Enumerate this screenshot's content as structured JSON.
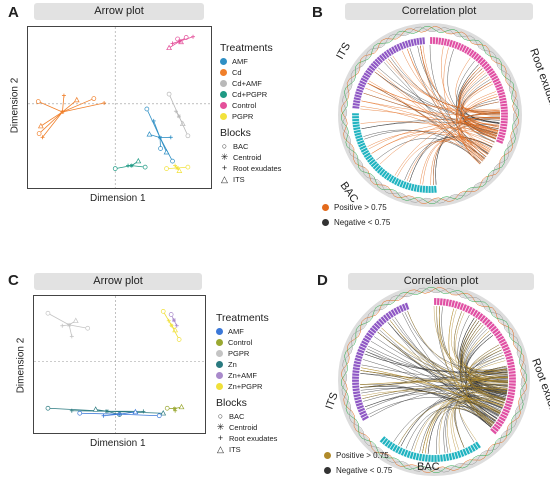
{
  "panels": {
    "A": {
      "letter": "A",
      "title": "Arrow plot",
      "xlabel": "Dimension 1",
      "ylabel": "Dimension 2"
    },
    "B": {
      "letter": "B",
      "title": "Correlation plot"
    },
    "C": {
      "letter": "C",
      "title": "Arrow plot",
      "xlabel": "Dimension 1",
      "ylabel": "Dimension 2"
    },
    "D": {
      "letter": "D",
      "title": "Correlation plot"
    }
  },
  "legend_top": {
    "treatments_title": "Treatments",
    "treatments": [
      {
        "label": "AMF",
        "color": "#2f8fc4"
      },
      {
        "label": "Cd",
        "color": "#f07f2a"
      },
      {
        "label": "Cd+AMF",
        "color": "#b9b9b9"
      },
      {
        "label": "Cd+PGPR",
        "color": "#1f9a84"
      },
      {
        "label": "Control",
        "color": "#e4509a"
      },
      {
        "label": "PGPR",
        "color": "#f2e23c"
      }
    ],
    "blocks_title": "Blocks",
    "blocks": [
      {
        "label": "BAC",
        "icon": "circle-icon"
      },
      {
        "label": "Centroid",
        "icon": "asterisk-icon"
      },
      {
        "label": "Root exudates",
        "icon": "plus-icon"
      },
      {
        "label": "ITS",
        "icon": "triangle-icon"
      }
    ]
  },
  "legend_bottom": {
    "treatments_title": "Treatments",
    "treatments": [
      {
        "label": "AMF",
        "color": "#3b78d8"
      },
      {
        "label": "Control",
        "color": "#9aa832"
      },
      {
        "label": "PGPR",
        "color": "#c4c4c4"
      },
      {
        "label": "Zn",
        "color": "#2a7a80"
      },
      {
        "label": "Zn+AMF",
        "color": "#a98acb"
      },
      {
        "label": "Zn+PGPR",
        "color": "#f0e03a"
      }
    ],
    "blocks_title": "Blocks",
    "blocks": [
      {
        "label": "BAC",
        "icon": "circle-icon"
      },
      {
        "label": "Centroid",
        "icon": "asterisk-icon"
      },
      {
        "label": "Root exudates",
        "icon": "plus-icon"
      },
      {
        "label": "ITS",
        "icon": "triangle-icon"
      }
    ]
  },
  "corr_top": {
    "ring_labels": {
      "its": "ITS",
      "root": "Root exudates",
      "bac": "BAC"
    },
    "positive_label": "Positive > 0.75",
    "negative_label": "Negative < 0.75",
    "positive_color": "#e36a1b",
    "negative_color": "#333333",
    "its_color": "#8e57c4",
    "root_color": "#e04fa3",
    "bac_color": "#1fb3c0"
  },
  "corr_bottom": {
    "ring_labels": {
      "its": "ITS",
      "root": "Root exudates",
      "bac": "BAC"
    },
    "positive_label": "Positive > 0.75",
    "negative_label": "Negative < 0.75",
    "positive_color": "#b08a2a",
    "negative_color": "#333333",
    "its_color": "#8e57c4",
    "root_color": "#e04fa3",
    "bac_color": "#1fb3c0"
  },
  "chart_data": [
    {
      "type": "scatter",
      "title": "Arrow plot",
      "xlabel": "Dimension 1",
      "ylabel": "Dimension 2",
      "series": [
        {
          "name": "Control",
          "points": [
            [
              0.68,
              0.92
            ],
            [
              0.62,
              0.86
            ],
            [
              0.72,
              0.88
            ],
            [
              0.78,
              0.94
            ],
            [
              0.86,
              0.95
            ],
            [
              0.58,
              0.8
            ]
          ]
        },
        {
          "name": "Cd",
          "points": [
            [
              -0.95,
              0.08
            ],
            [
              -0.65,
              0.16
            ],
            [
              -0.5,
              0.1
            ],
            [
              -0.3,
              0.12
            ],
            [
              -0.18,
              0.06
            ],
            [
              -0.92,
              -0.25
            ],
            [
              -0.94,
              -0.35
            ],
            [
              -0.9,
              -0.4
            ]
          ]
        },
        {
          "name": "AMF",
          "points": [
            [
              0.32,
              -0.02
            ],
            [
              0.4,
              -0.18
            ],
            [
              0.35,
              -0.36
            ],
            [
              0.48,
              -0.55
            ],
            [
              0.6,
              -0.4
            ],
            [
              0.55,
              -0.6
            ],
            [
              0.62,
              -0.72
            ]
          ]
        },
        {
          "name": "Cd+AMF",
          "points": [
            [
              0.58,
              0.18
            ],
            [
              0.66,
              -0.05
            ],
            [
              0.74,
              -0.22
            ],
            [
              0.8,
              -0.38
            ]
          ]
        },
        {
          "name": "Cd+PGPR",
          "points": [
            [
              -0.05,
              -0.82
            ],
            [
              0.1,
              -0.78
            ],
            [
              0.22,
              -0.72
            ],
            [
              0.3,
              -0.8
            ]
          ]
        },
        {
          "name": "PGPR",
          "points": [
            [
              0.55,
              -0.82
            ],
            [
              0.65,
              -0.78
            ],
            [
              0.7,
              -0.85
            ],
            [
              0.8,
              -0.8
            ]
          ]
        }
      ]
    },
    {
      "type": "scatter",
      "title": "Arrow plot",
      "xlabel": "Dimension 1",
      "ylabel": "Dimension 2",
      "series": [
        {
          "name": "PGPR",
          "points": [
            [
              -0.9,
              0.82
            ],
            [
              -0.72,
              0.62
            ],
            [
              -0.55,
              0.7
            ],
            [
              -0.4,
              0.58
            ],
            [
              -0.6,
              0.45
            ]
          ]
        },
        {
          "name": "Zn+PGPR",
          "points": [
            [
              0.55,
              0.85
            ],
            [
              0.62,
              0.7
            ],
            [
              0.7,
              0.55
            ],
            [
              0.75,
              0.4
            ]
          ]
        },
        {
          "name": "Zn+AMF",
          "points": [
            [
              0.65,
              0.8
            ],
            [
              0.72,
              0.62
            ]
          ]
        },
        {
          "name": "Zn",
          "points": [
            [
              -0.9,
              -0.7
            ],
            [
              -0.6,
              -0.74
            ],
            [
              -0.3,
              -0.72
            ],
            [
              0.0,
              -0.8
            ],
            [
              0.3,
              -0.75
            ],
            [
              0.55,
              -0.78
            ]
          ]
        },
        {
          "name": "AMF",
          "points": [
            [
              -0.5,
              -0.78
            ],
            [
              -0.2,
              -0.82
            ],
            [
              0.2,
              -0.76
            ],
            [
              0.5,
              -0.82
            ]
          ]
        },
        {
          "name": "Control",
          "points": [
            [
              0.6,
              -0.7
            ],
            [
              0.7,
              -0.74
            ],
            [
              0.78,
              -0.68
            ]
          ]
        }
      ]
    }
  ]
}
